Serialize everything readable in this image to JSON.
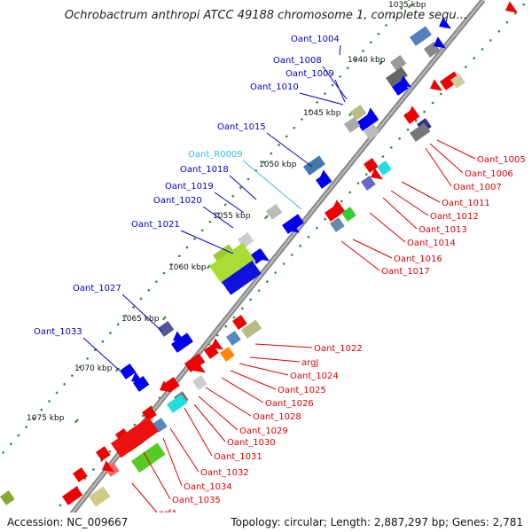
{
  "map": {
    "title": "Ochrobactrum anthropi ATCC 49188 chromosome 1, complete sequ...",
    "accession": "Accession: NC_009667",
    "info": "Topology: circular; Length: 2,887,297 bp; Genes: 2,781"
  },
  "colors": {
    "forward_label": "#0000cc",
    "reverse_label": "#dd0000",
    "rna_label": "#33bbee",
    "backbone": "#888888",
    "forward_gene": "#0000ee",
    "reverse_gene": "#ee0000",
    "tick_dot": "#2d8b2d"
  },
  "scale_labels": [
    "1035 kbp",
    "1040 kbp",
    "1045 kbp",
    "1050 kbp",
    "1055 kbp",
    "1060 kbp",
    "1065 kbp",
    "1070 kbp",
    "1075 kbp"
  ],
  "left_labels": [
    "Oant_1004",
    "Oant_1008",
    "Oant_1009",
    "Oant_1010",
    "Oant_1015",
    "Oant_R0009",
    "Oant_1018",
    "Oant_1019",
    "Oant_1020",
    "Oant_1021",
    "Oant_1027",
    "Oant_1033"
  ],
  "right_labels": [
    "Oant_1005",
    "Oant_1006",
    "Oant_1007",
    "Oant_1011",
    "Oant_1012",
    "Oant_1013",
    "Oant_1014",
    "Oant_1016",
    "Oant_1017",
    "Oant_1022",
    "argJ",
    "Oant_1024",
    "Oant_1025",
    "Oant_1026",
    "Oant_1028",
    "Oant_1029",
    "Oant_1030",
    "Oant_1031",
    "Oant_1032",
    "Oant_1034",
    "Oant_1035",
    "prfA"
  ]
}
